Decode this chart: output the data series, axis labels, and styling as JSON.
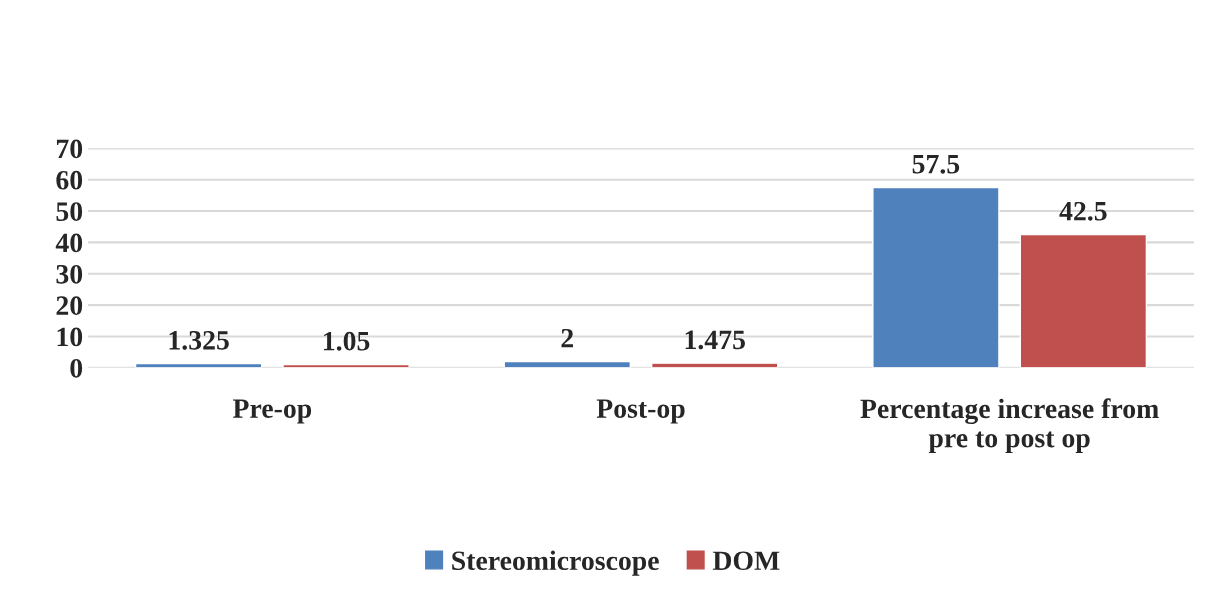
{
  "chart_data": {
    "type": "bar",
    "categories": [
      "Pre-op",
      "Post-op",
      "Percentage increase from\npre to post op"
    ],
    "series": [
      {
        "name": "Stereomicroscope",
        "color": "#4f81bd",
        "values": [
          1.325,
          2,
          57.5
        ]
      },
      {
        "name": "DOM",
        "color": "#c0504d",
        "values": [
          1.05,
          1.475,
          42.5
        ]
      }
    ],
    "ylim": [
      0,
      70
    ],
    "yticks": [
      0,
      10,
      20,
      30,
      40,
      50,
      60,
      70
    ],
    "grid": "y",
    "legend": "bottom",
    "data_labels": true
  }
}
